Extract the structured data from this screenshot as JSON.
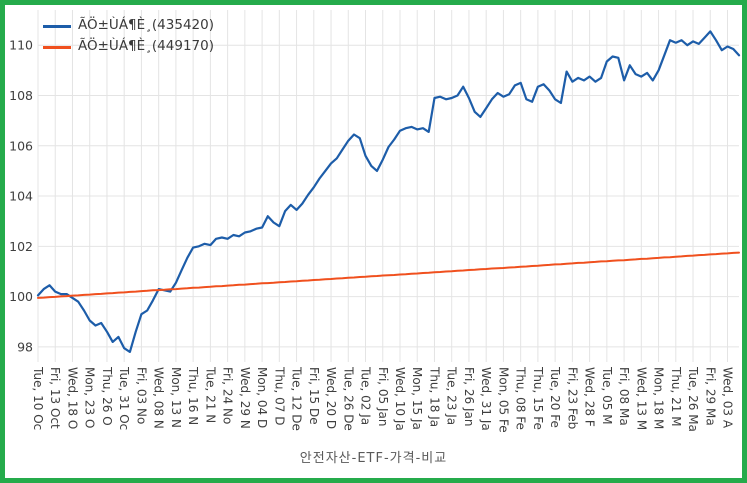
{
  "window": {
    "border_color": "#25ab4b",
    "background": "#ffffff"
  },
  "colors": {
    "series_blue": "#1d5da9",
    "series_orange": "#f0501e",
    "gridline": "#e4e4e4",
    "axis_text": "#3f3f3f",
    "title_text": "#595959"
  },
  "chart_data": {
    "type": "line",
    "title": "안전자산-ETF-가격-비교",
    "legend_position": "top-left",
    "grid": true,
    "y_ticks": [
      98,
      100,
      102,
      104,
      106,
      108,
      110
    ],
    "ylim": [
      97.4,
      111.4
    ],
    "points_per_tick": 3,
    "x_tick_labels": [
      "Tue, 10 Oc",
      "Fri, 13 Oct",
      "Wed, 18 O",
      "Mon, 23 O",
      "Thu, 26 O",
      "Tue, 31 Oc",
      "Fri, 03 No",
      "Wed, 08 N",
      "Mon, 13 N",
      "Thu, 16 N",
      "Tue, 21 N",
      "Fri, 24 No",
      "Wed, 29 N",
      "Mon, 04 D",
      "Thu, 07 D",
      "Tue, 12 De",
      "Fri, 15 De",
      "Wed, 20 D",
      "Tue, 26 De",
      "Tue, 02 Ja",
      "Fri, 05 Jan",
      "Wed, 10 Ja",
      "Mon, 15 Ja",
      "Thu, 18 Ja",
      "Tue, 23 Ja",
      "Fri, 26 Jan",
      "Wed, 31 Ja",
      "Mon, 05 Fe",
      "Thu, 08 Fe",
      "Thu, 15 Fe",
      "Tue, 20 Fe",
      "Fri, 23 Feb",
      "Wed, 28 F",
      "Tue, 05 M",
      "Fri, 08 Ma",
      "Wed, 13 M",
      "Mon, 18 M",
      "Thu, 21 M",
      "Tue, 26 Ma",
      "Fri, 29 Ma",
      "Wed, 03 A"
    ],
    "series": [
      {
        "name": "ÃÖ±ÙÁ¶È¸(435420)",
        "color": "#1d5da9",
        "values": [
          100.05,
          100.3,
          100.45,
          100.2,
          100.1,
          100.1,
          99.95,
          99.8,
          99.45,
          99.05,
          98.85,
          98.95,
          98.6,
          98.2,
          98.4,
          97.95,
          97.8,
          98.6,
          99.3,
          99.45,
          99.85,
          100.3,
          100.25,
          100.2,
          100.55,
          101.05,
          101.55,
          101.95,
          102.0,
          102.1,
          102.05,
          102.3,
          102.35,
          102.3,
          102.45,
          102.4,
          102.55,
          102.6,
          102.7,
          102.75,
          103.2,
          102.95,
          102.8,
          103.4,
          103.65,
          103.45,
          103.7,
          104.05,
          104.35,
          104.7,
          105.0,
          105.3,
          105.5,
          105.85,
          106.2,
          106.45,
          106.3,
          105.6,
          105.2,
          105.0,
          105.45,
          105.95,
          106.25,
          106.6,
          106.7,
          106.75,
          106.65,
          106.7,
          106.55,
          107.9,
          107.95,
          107.85,
          107.9,
          108.0,
          108.35,
          107.9,
          107.35,
          107.15,
          107.5,
          107.85,
          108.1,
          107.95,
          108.05,
          108.4,
          108.5,
          107.85,
          107.75,
          108.35,
          108.45,
          108.2,
          107.85,
          107.7,
          108.95,
          108.55,
          108.7,
          108.6,
          108.75,
          108.55,
          108.7,
          109.35,
          109.55,
          109.5,
          108.6,
          109.2,
          108.85,
          108.75,
          108.9,
          108.6,
          109.0,
          109.6,
          110.2,
          110.1,
          110.2,
          110.0,
          110.15,
          110.05,
          110.3,
          110.55,
          110.2,
          109.8,
          109.95,
          109.85,
          109.6
        ]
      },
      {
        "name": "ÃÖ±ÙÁ¶È¸(449170)",
        "color": "#f0501e",
        "values": [
          99.95,
          99.96,
          99.98,
          99.99,
          100.01,
          100.02,
          100.04,
          100.05,
          100.07,
          100.08,
          100.1,
          100.11,
          100.13,
          100.14,
          100.16,
          100.17,
          100.19,
          100.2,
          100.22,
          100.23,
          100.25,
          100.26,
          100.27,
          100.29,
          100.3,
          100.32,
          100.33,
          100.35,
          100.36,
          100.38,
          100.39,
          100.41,
          100.42,
          100.44,
          100.45,
          100.47,
          100.48,
          100.5,
          100.51,
          100.53,
          100.54,
          100.55,
          100.57,
          100.58,
          100.6,
          100.61,
          100.63,
          100.64,
          100.66,
          100.67,
          100.69,
          100.7,
          100.72,
          100.73,
          100.75,
          100.76,
          100.78,
          100.79,
          100.81,
          100.82,
          100.84,
          100.85,
          100.86,
          100.88,
          100.89,
          100.91,
          100.92,
          100.94,
          100.95,
          100.97,
          100.98,
          101.0,
          101.01,
          101.03,
          101.04,
          101.06,
          101.07,
          101.09,
          101.1,
          101.12,
          101.13,
          101.14,
          101.16,
          101.17,
          101.19,
          101.2,
          101.22,
          101.23,
          101.25,
          101.26,
          101.28,
          101.29,
          101.31,
          101.32,
          101.34,
          101.35,
          101.37,
          101.38,
          101.4,
          101.41,
          101.43,
          101.44,
          101.45,
          101.47,
          101.48,
          101.5,
          101.51,
          101.53,
          101.54,
          101.56,
          101.57,
          101.59,
          101.6,
          101.62,
          101.63,
          101.65,
          101.66,
          101.68,
          101.69,
          101.71,
          101.72,
          101.74,
          101.75
        ]
      }
    ]
  }
}
